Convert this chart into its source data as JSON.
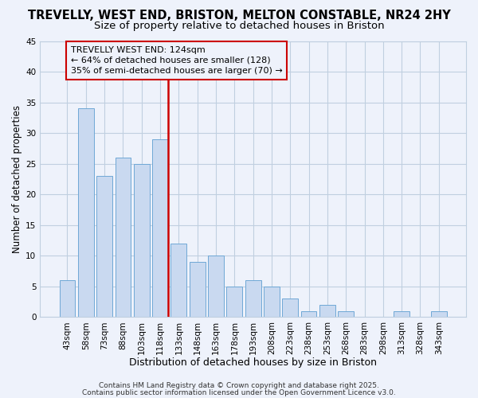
{
  "title": "TREVELLY, WEST END, BRISTON, MELTON CONSTABLE, NR24 2HY",
  "subtitle": "Size of property relative to detached houses in Briston",
  "xlabel": "Distribution of detached houses by size in Briston",
  "ylabel": "Number of detached properties",
  "bar_labels": [
    "43sqm",
    "58sqm",
    "73sqm",
    "88sqm",
    "103sqm",
    "118sqm",
    "133sqm",
    "148sqm",
    "163sqm",
    "178sqm",
    "193sqm",
    "208sqm",
    "223sqm",
    "238sqm",
    "253sqm",
    "268sqm",
    "283sqm",
    "298sqm",
    "313sqm",
    "328sqm",
    "343sqm"
  ],
  "bar_values": [
    6,
    34,
    23,
    26,
    25,
    29,
    12,
    9,
    10,
    5,
    6,
    5,
    3,
    1,
    2,
    1,
    0,
    0,
    1,
    0,
    1
  ],
  "bar_color": "#c9d9f0",
  "bar_edgecolor": "#6fa8d6",
  "vline_index": 5,
  "vline_color": "#cc0000",
  "annotation_line1": "TREVELLY WEST END: 124sqm",
  "annotation_line2": "← 64% of detached houses are smaller (128)",
  "annotation_line3": "35% of semi-detached houses are larger (70) →",
  "annotation_box_edgecolor": "#cc0000",
  "ylim": [
    0,
    45
  ],
  "yticks": [
    0,
    5,
    10,
    15,
    20,
    25,
    30,
    35,
    40,
    45
  ],
  "grid_color": "#c0cfe0",
  "background_color": "#eef2fb",
  "footer1": "Contains HM Land Registry data © Crown copyright and database right 2025.",
  "footer2": "Contains public sector information licensed under the Open Government Licence v3.0.",
  "title_fontsize": 10.5,
  "subtitle_fontsize": 9.5,
  "xlabel_fontsize": 9,
  "ylabel_fontsize": 8.5,
  "tick_fontsize": 7.5,
  "annotation_fontsize": 8,
  "footer_fontsize": 6.5
}
